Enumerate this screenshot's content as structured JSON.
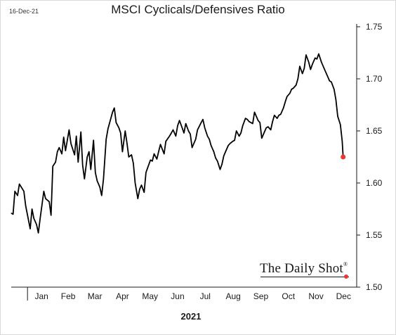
{
  "header": {
    "date_stamp": "16-Dec-21",
    "title": "MSCI Cyclicals/Defensives Ratio"
  },
  "watermark": {
    "text": "The Daily Shot",
    "mark": "®"
  },
  "colors": {
    "line": "#000000",
    "last_point": "#e53935",
    "axis": "#1a1a1a"
  },
  "chart_data": {
    "type": "line",
    "title": "MSCI Cyclicals/Defensives Ratio",
    "xlabel": "2021",
    "ylabel": "",
    "ylim": [
      1.5,
      1.75
    ],
    "yticks": [
      1.5,
      1.55,
      1.6,
      1.65,
      1.7,
      1.75
    ],
    "ytick_labels": [
      "1.50",
      "1.55",
      "1.60",
      "1.65",
      "1.70",
      "1.75"
    ],
    "y_axis_side": "right",
    "grid": false,
    "legend": "none",
    "month_labels": [
      "Jan",
      "Feb",
      "Mar",
      "Apr",
      "May",
      "Jun",
      "Jul",
      "Aug",
      "Sep",
      "Oct",
      "Nov",
      "Dec"
    ],
    "x_range": [
      "2020-12-14",
      "2021-12-31"
    ],
    "last_point": {
      "x": "2021-12-16",
      "y": 1.625
    },
    "x": [
      "2020-12-14",
      "2020-12-16",
      "2020-12-18",
      "2020-12-21",
      "2020-12-23",
      "2020-12-28",
      "2020-12-30",
      "2021-01-04",
      "2021-01-06",
      "2021-01-08",
      "2021-01-11",
      "2021-01-13",
      "2021-01-15",
      "2021-01-19",
      "2021-01-21",
      "2021-01-25",
      "2021-01-27",
      "2021-01-29",
      "2021-02-01",
      "2021-02-03",
      "2021-02-05",
      "2021-02-08",
      "2021-02-10",
      "2021-02-12",
      "2021-02-16",
      "2021-02-18",
      "2021-02-22",
      "2021-02-24",
      "2021-02-26",
      "2021-03-01",
      "2021-03-03",
      "2021-03-05",
      "2021-03-08",
      "2021-03-10",
      "2021-03-12",
      "2021-03-15",
      "2021-03-17",
      "2021-03-19",
      "2021-03-22",
      "2021-03-24",
      "2021-03-26",
      "2021-03-29",
      "2021-03-31",
      "2021-04-05",
      "2021-04-07",
      "2021-04-09",
      "2021-04-12",
      "2021-04-14",
      "2021-04-16",
      "2021-04-19",
      "2021-04-21",
      "2021-04-23",
      "2021-04-26",
      "2021-04-28",
      "2021-04-30",
      "2021-05-03",
      "2021-05-05",
      "2021-05-07",
      "2021-05-10",
      "2021-05-12",
      "2021-05-14",
      "2021-05-17",
      "2021-05-19",
      "2021-05-21",
      "2021-05-24",
      "2021-05-26",
      "2021-05-28",
      "2021-06-01",
      "2021-06-03",
      "2021-06-07",
      "2021-06-09",
      "2021-06-11",
      "2021-06-14",
      "2021-06-16",
      "2021-06-18",
      "2021-06-21",
      "2021-06-23",
      "2021-06-25",
      "2021-06-28",
      "2021-06-30",
      "2021-07-02",
      "2021-07-06",
      "2021-07-08",
      "2021-07-12",
      "2021-07-14",
      "2021-07-16",
      "2021-07-19",
      "2021-07-21",
      "2021-07-23",
      "2021-07-26",
      "2021-07-28",
      "2021-07-30",
      "2021-08-02",
      "2021-08-04",
      "2021-08-06",
      "2021-08-09",
      "2021-08-11",
      "2021-08-13",
      "2021-08-16",
      "2021-08-18",
      "2021-08-20",
      "2021-08-23",
      "2021-08-25",
      "2021-08-27",
      "2021-08-30",
      "2021-09-01",
      "2021-09-03",
      "2021-09-07",
      "2021-09-09",
      "2021-09-13",
      "2021-09-15",
      "2021-09-17",
      "2021-09-20",
      "2021-09-22",
      "2021-09-24",
      "2021-09-27",
      "2021-09-29",
      "2021-10-01",
      "2021-10-04",
      "2021-10-06",
      "2021-10-08",
      "2021-10-11",
      "2021-10-13",
      "2021-10-15",
      "2021-10-18",
      "2021-10-20",
      "2021-10-22",
      "2021-10-25",
      "2021-10-27",
      "2021-10-29",
      "2021-11-01",
      "2021-11-03",
      "2021-11-05",
      "2021-11-08",
      "2021-11-10",
      "2021-11-12",
      "2021-11-15",
      "2021-11-17",
      "2021-11-19",
      "2021-11-22",
      "2021-11-24",
      "2021-11-26",
      "2021-11-29",
      "2021-12-01",
      "2021-12-03",
      "2021-12-06",
      "2021-12-08",
      "2021-12-10",
      "2021-12-13",
      "2021-12-15",
      "2021-12-16"
    ],
    "series": [
      {
        "values": [
          1.571,
          1.57,
          1.592,
          1.588,
          1.599,
          1.592,
          1.578,
          1.556,
          1.575,
          1.566,
          1.56,
          1.552,
          1.566,
          1.592,
          1.585,
          1.582,
          1.569,
          1.616,
          1.62,
          1.63,
          1.634,
          1.628,
          1.644,
          1.631,
          1.651,
          1.638,
          1.627,
          1.645,
          1.62,
          1.649,
          1.617,
          1.604,
          1.625,
          1.63,
          1.613,
          1.641,
          1.61,
          1.602,
          1.596,
          1.588,
          1.604,
          1.642,
          1.652,
          1.668,
          1.672,
          1.658,
          1.653,
          1.648,
          1.63,
          1.65,
          1.638,
          1.625,
          1.627,
          1.619,
          1.6,
          1.585,
          1.594,
          1.598,
          1.591,
          1.61,
          1.615,
          1.622,
          1.621,
          1.628,
          1.623,
          1.63,
          1.637,
          1.628,
          1.64,
          1.645,
          1.648,
          1.651,
          1.645,
          1.655,
          1.66,
          1.653,
          1.648,
          1.657,
          1.65,
          1.647,
          1.634,
          1.642,
          1.651,
          1.658,
          1.661,
          1.653,
          1.645,
          1.642,
          1.636,
          1.63,
          1.624,
          1.621,
          1.613,
          1.618,
          1.626,
          1.632,
          1.636,
          1.638,
          1.64,
          1.641,
          1.65,
          1.645,
          1.648,
          1.655,
          1.662,
          1.661,
          1.659,
          1.657,
          1.668,
          1.66,
          1.658,
          1.643,
          1.649,
          1.653,
          1.654,
          1.651,
          1.659,
          1.665,
          1.662,
          1.665,
          1.666,
          1.672,
          1.678,
          1.683,
          1.686,
          1.69,
          1.691,
          1.694,
          1.7,
          1.712,
          1.705,
          1.71,
          1.723,
          1.716,
          1.709,
          1.714,
          1.72,
          1.719,
          1.724,
          1.716,
          1.712,
          1.708,
          1.702,
          1.698,
          1.697,
          1.69,
          1.68,
          1.664,
          1.656,
          1.64,
          1.625
        ]
      }
    ]
  }
}
